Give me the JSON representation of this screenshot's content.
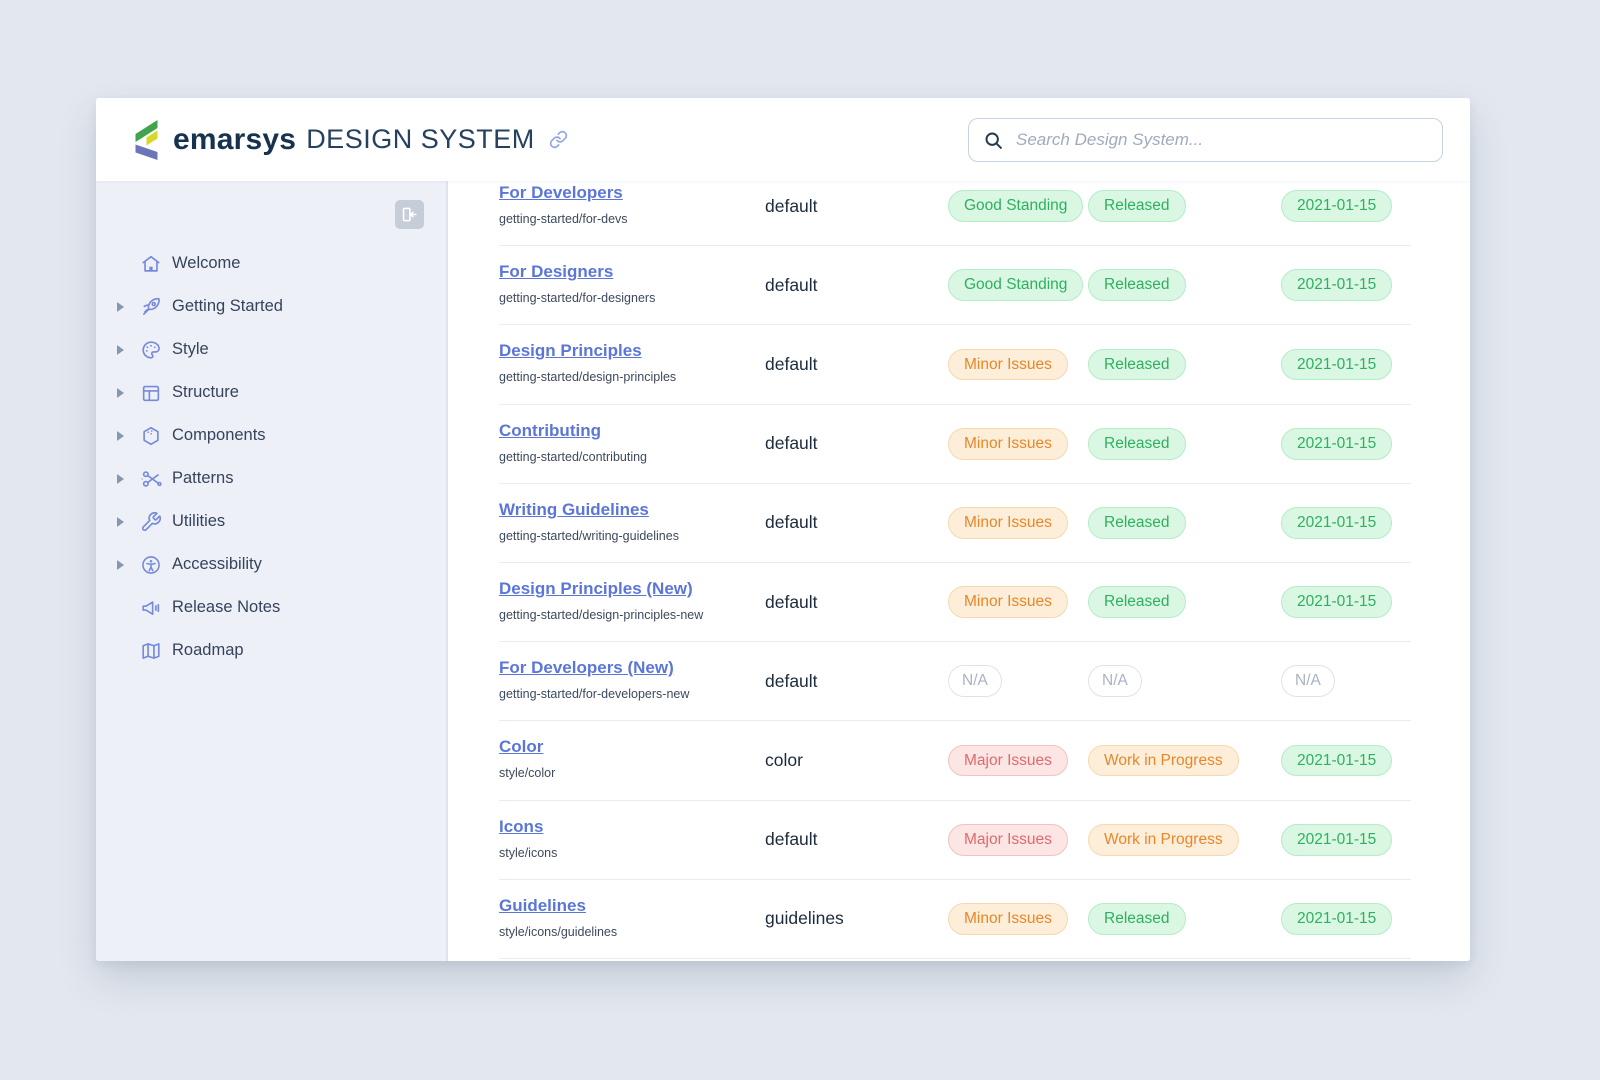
{
  "colors": {
    "accent_link": "#5b76d8",
    "sidebar_icon": "#7689dc",
    "badge_green_text": "#2fb05f",
    "badge_orange_text": "#e7872a",
    "badge_red_text": "#e16a6a",
    "badge_gray_text": "#a9b3c0",
    "logo_green": "#3fa44a",
    "logo_yellow": "#d7d928",
    "logo_purple": "#6b76b8"
  },
  "header": {
    "brand": "emarsys",
    "product": "DESIGN SYSTEM",
    "logo_icon": "emarsys-logo-icon",
    "permalink_icon": "link-icon",
    "search": {
      "icon": "search-icon",
      "placeholder": "Search Design System...",
      "value": ""
    }
  },
  "sidebar": {
    "collapse_icon": "collapse-sidebar-icon",
    "items": [
      {
        "label": "Welcome",
        "icon": "home-icon",
        "expandable": false
      },
      {
        "label": "Getting Started",
        "icon": "rocket-icon",
        "expandable": true
      },
      {
        "label": "Style",
        "icon": "palette-icon",
        "expandable": true
      },
      {
        "label": "Structure",
        "icon": "layout-icon",
        "expandable": true
      },
      {
        "label": "Components",
        "icon": "hexagon-icon",
        "expandable": true
      },
      {
        "label": "Patterns",
        "icon": "scissors-icon",
        "expandable": true
      },
      {
        "label": "Utilities",
        "icon": "wrench-icon",
        "expandable": true
      },
      {
        "label": "Accessibility",
        "icon": "accessibility-icon",
        "expandable": true
      },
      {
        "label": "Release Notes",
        "icon": "megaphone-icon",
        "expandable": false
      },
      {
        "label": "Roadmap",
        "icon": "map-icon",
        "expandable": false
      }
    ]
  },
  "table": {
    "rows": [
      {
        "title": "For Developers",
        "path": "getting-started/for-devs",
        "type": "default",
        "badges": [
          {
            "label": "Good Standing",
            "variant": "green"
          },
          {
            "label": "Released",
            "variant": "green"
          },
          {
            "label": "2021-01-15",
            "variant": "green"
          }
        ]
      },
      {
        "title": "For Designers",
        "path": "getting-started/for-designers",
        "type": "default",
        "badges": [
          {
            "label": "Good Standing",
            "variant": "green"
          },
          {
            "label": "Released",
            "variant": "green"
          },
          {
            "label": "2021-01-15",
            "variant": "green"
          }
        ]
      },
      {
        "title": "Design Principles",
        "path": "getting-started/design-principles",
        "type": "default",
        "badges": [
          {
            "label": "Minor Issues",
            "variant": "orange"
          },
          {
            "label": "Released",
            "variant": "green"
          },
          {
            "label": "2021-01-15",
            "variant": "green"
          }
        ]
      },
      {
        "title": "Contributing",
        "path": "getting-started/contributing",
        "type": "default",
        "badges": [
          {
            "label": "Minor Issues",
            "variant": "orange"
          },
          {
            "label": "Released",
            "variant": "green"
          },
          {
            "label": "2021-01-15",
            "variant": "green"
          }
        ]
      },
      {
        "title": "Writing Guidelines",
        "path": "getting-started/writing-guidelines",
        "type": "default",
        "badges": [
          {
            "label": "Minor Issues",
            "variant": "orange"
          },
          {
            "label": "Released",
            "variant": "green"
          },
          {
            "label": "2021-01-15",
            "variant": "green"
          }
        ]
      },
      {
        "title": "Design Principles (New)",
        "path": "getting-started/design-principles-new",
        "type": "default",
        "badges": [
          {
            "label": "Minor Issues",
            "variant": "orange"
          },
          {
            "label": "Released",
            "variant": "green"
          },
          {
            "label": "2021-01-15",
            "variant": "green"
          }
        ]
      },
      {
        "title": "For Developers (New)",
        "path": "getting-started/for-developers-new",
        "type": "default",
        "badges": [
          {
            "label": "N/A",
            "variant": "gray"
          },
          {
            "label": "N/A",
            "variant": "gray"
          },
          {
            "label": "N/A",
            "variant": "gray"
          }
        ]
      },
      {
        "title": "Color",
        "path": "style/color",
        "type": "color",
        "badges": [
          {
            "label": "Major Issues",
            "variant": "red"
          },
          {
            "label": "Work in Progress",
            "variant": "orange"
          },
          {
            "label": "2021-01-15",
            "variant": "green"
          }
        ]
      },
      {
        "title": "Icons",
        "path": "style/icons",
        "type": "default",
        "badges": [
          {
            "label": "Major Issues",
            "variant": "red"
          },
          {
            "label": "Work in Progress",
            "variant": "orange"
          },
          {
            "label": "2021-01-15",
            "variant": "green"
          }
        ]
      },
      {
        "title": "Guidelines",
        "path": "style/icons/guidelines",
        "type": "guidelines",
        "badges": [
          {
            "label": "Minor Issues",
            "variant": "orange"
          },
          {
            "label": "Released",
            "variant": "green"
          },
          {
            "label": "2021-01-15",
            "variant": "green"
          }
        ]
      }
    ]
  }
}
